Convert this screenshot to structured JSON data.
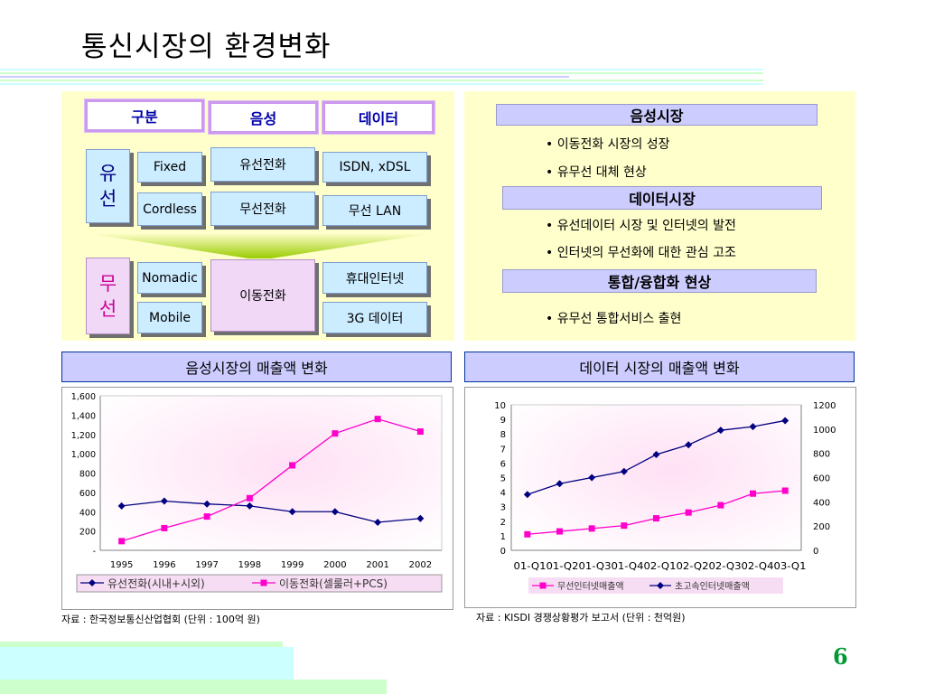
{
  "title": "통신시장의 환경변화",
  "page_number": "6",
  "table": {
    "headers": [
      "구분",
      "음성",
      "데이터"
    ],
    "wired_label": [
      "유",
      "선"
    ],
    "wireless_label": [
      "무",
      "선"
    ],
    "rows": [
      {
        "type": "Fixed",
        "voice": "유선전화",
        "data": "ISDN, xDSL"
      },
      {
        "type": "Cordless",
        "voice": "무선전화",
        "data": "무선 LAN"
      },
      {
        "type": "Nomadic",
        "voice": "이동전화",
        "data": "휴대인터넷"
      },
      {
        "type": "Mobile",
        "voice": "이동전화",
        "data": "3G 데이터"
      }
    ]
  },
  "market": {
    "sections": [
      {
        "title": "음성시장",
        "bullets": [
          "• 이동전화 시장의 성장",
          "• 유무선 대체 현상"
        ]
      },
      {
        "title": "데이터시장",
        "bullets": [
          "• 유선데이터 시장 및 인터넷의 발전",
          "• 인터넷의 무선화에 대한 관심 고조"
        ]
      },
      {
        "title": "통합/융합화 현상",
        "bullets": [
          "• 유무선 통합서비스 출현"
        ]
      }
    ]
  },
  "chart_titles": [
    "음성시장의 매출액 변화",
    "데이터 시장의 매출액 변화"
  ],
  "sources": [
    "자료 : 한국정보통신산업협회 (단위 : 100억 원)",
    "자료 : KISDI 경쟁상황평가 보고서  (단위 : 천억원)"
  ],
  "colors": {
    "navy": "#000080",
    "magenta": "#ff00cc",
    "title_band": "#ccccff",
    "panel": "#ffffcc",
    "page_number": "#009933"
  },
  "chart_data": [
    {
      "type": "line",
      "title": "",
      "x": [
        "1995",
        "1996",
        "1997",
        "1998",
        "1999",
        "2000",
        "2001",
        "2002"
      ],
      "ylim": [
        0,
        1600
      ],
      "yticks": [
        "-",
        "200",
        "400",
        "600",
        "800",
        "1,000",
        "1,200",
        "1,400",
        "1,600"
      ],
      "legend": "bottom",
      "series": [
        {
          "name": "유선전화(시내+시외)",
          "color": "#000080",
          "marker": "diamond",
          "values": [
            460,
            510,
            480,
            460,
            400,
            400,
            290,
            330
          ]
        },
        {
          "name": "이동전화(셀룰러+PCS)",
          "color": "#ff00cc",
          "marker": "square",
          "values": [
            95,
            230,
            350,
            540,
            880,
            1210,
            1360,
            1230
          ]
        }
      ]
    },
    {
      "type": "line",
      "title": "",
      "x": [
        "01-Q1",
        "01-Q2",
        "01-Q3",
        "01-Q4",
        "02-Q1",
        "02-Q2",
        "02-Q3",
        "02-Q4",
        "03-Q1"
      ],
      "xlabel_text": "01-Q101-Q201-Q301-Q402-Q102-Q202-Q302-Q403-Q1",
      "ylim_left": [
        0,
        10
      ],
      "ylim_right": [
        0,
        1200
      ],
      "yticks_left": [
        "0",
        "1",
        "2",
        "3",
        "4",
        "5",
        "6",
        "7",
        "8",
        "9",
        "10"
      ],
      "yticks_right": [
        "0",
        "200",
        "400",
        "600",
        "800",
        "1000",
        "1200"
      ],
      "legend": "bottom",
      "series": [
        {
          "name": "무선인터넷매출액",
          "axis": "left",
          "color": "#ff00cc",
          "marker": "square",
          "values": [
            1.1,
            1.3,
            1.5,
            1.7,
            2.2,
            2.6,
            3.1,
            3.9,
            4.1
          ]
        },
        {
          "name": "초고속인터넷매출액",
          "axis": "right",
          "color": "#000080",
          "marker": "diamond",
          "values": [
            460,
            550,
            600,
            650,
            790,
            870,
            990,
            1020,
            1070
          ]
        }
      ]
    }
  ]
}
